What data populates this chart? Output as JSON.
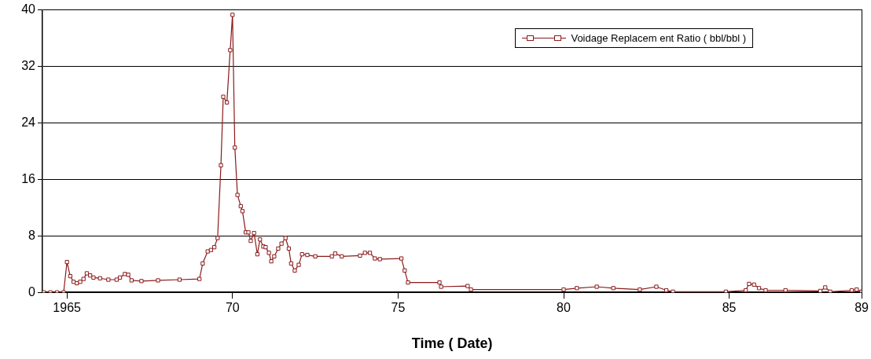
{
  "chart_data": {
    "type": "line",
    "xlabel": "Time ( Date)",
    "xlim": [
      1964.26,
      1989
    ],
    "xticks": [
      {
        "value": 1965,
        "label": "1965"
      },
      {
        "value": 1970,
        "label": "70"
      },
      {
        "value": 1975,
        "label": "75"
      },
      {
        "value": 1980,
        "label": "80"
      },
      {
        "value": 1985,
        "label": "85"
      },
      {
        "value": 1989,
        "label": "89"
      }
    ],
    "ylim": [
      0,
      40
    ],
    "yticks": [
      0,
      8,
      16,
      24,
      32,
      40
    ],
    "grid": "y",
    "legend": "top right",
    "marker": "square",
    "line_style": "solid",
    "series": [
      {
        "name": "Voidage Replacem ent Ratio ( bbl/bbl )",
        "color": "#8b1a1a",
        "x": [
          1964.3,
          1964.5,
          1964.7,
          1964.9,
          1965.0,
          1965.1,
          1965.2,
          1965.3,
          1965.4,
          1965.5,
          1965.6,
          1965.7,
          1965.8,
          1966.0,
          1966.25,
          1966.5,
          1966.6,
          1966.75,
          1966.85,
          1966.95,
          1967.25,
          1967.75,
          1968.4,
          1969.0,
          1969.1,
          1969.25,
          1969.35,
          1969.45,
          1969.55,
          1969.65,
          1969.72,
          1969.83,
          1969.93,
          1970.0,
          1970.07,
          1970.15,
          1970.25,
          1970.3,
          1970.4,
          1970.48,
          1970.55,
          1970.65,
          1970.75,
          1970.83,
          1970.93,
          1971.0,
          1971.1,
          1971.17,
          1971.26,
          1971.38,
          1971.48,
          1971.6,
          1971.7,
          1971.77,
          1971.88,
          1972.0,
          1972.1,
          1972.26,
          1972.5,
          1973.0,
          1973.1,
          1973.3,
          1973.85,
          1974.0,
          1974.15,
          1974.3,
          1974.45,
          1975.1,
          1975.2,
          1975.3,
          1976.25,
          1976.3,
          1977.1,
          1977.2,
          1980.0,
          1980.4,
          1981.0,
          1981.5,
          1982.3,
          1982.8,
          1983.1,
          1983.3,
          1984.9,
          1985.5,
          1985.6,
          1985.75,
          1985.9,
          1986.1,
          1986.7,
          1987.75,
          1987.9,
          1988.05,
          1988.7,
          1988.85,
          1989.0
        ],
        "values": [
          0,
          0,
          0,
          0,
          4.3,
          2.3,
          1.5,
          1.3,
          1.5,
          1.9,
          2.7,
          2.4,
          2.1,
          2.0,
          1.8,
          1.8,
          2.1,
          2.6,
          2.5,
          1.7,
          1.6,
          1.7,
          1.8,
          1.9,
          4.1,
          5.8,
          6.0,
          6.4,
          7.7,
          18.0,
          27.7,
          26.9,
          34.3,
          39.3,
          20.5,
          13.8,
          12.2,
          11.5,
          8.5,
          8.5,
          7.3,
          8.4,
          5.4,
          7.5,
          6.5,
          6.4,
          5.6,
          4.4,
          5.1,
          6.2,
          6.9,
          7.7,
          6.2,
          4.1,
          3.1,
          3.9,
          5.4,
          5.3,
          5.1,
          5.1,
          5.5,
          5.1,
          5.2,
          5.6,
          5.6,
          4.8,
          4.7,
          4.8,
          3.1,
          1.4,
          1.4,
          0.8,
          0.9,
          0.4,
          0.4,
          0.6,
          0.8,
          0.6,
          0.4,
          0.8,
          0.3,
          0.1,
          0.1,
          0.3,
          1.2,
          1.1,
          0.6,
          0.3,
          0.3,
          0.2,
          0.7,
          0.1,
          0.3,
          0.4,
          0.1
        ]
      }
    ]
  }
}
